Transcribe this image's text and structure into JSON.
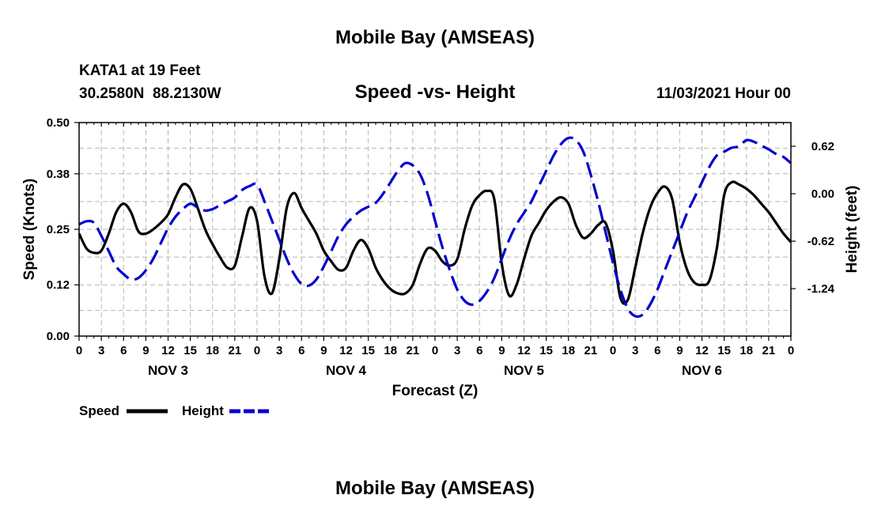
{
  "header": {
    "title": "Mobile Bay (AMSEAS)",
    "station": "KATA1 at 19 Feet",
    "coords": "30.2580N  88.2130W",
    "subtitle": "Speed -vs- Height",
    "datetime": "11/03/2021 Hour 00",
    "footer_title": "Mobile Bay (AMSEAS)"
  },
  "legend": {
    "speed_label": "Speed",
    "height_label": "Height"
  },
  "chart_data": {
    "type": "line",
    "title": "Speed -vs- Height",
    "xlabel": "Forecast (Z)",
    "ylabel_left": "Speed (Knots)",
    "ylabel_right": "Height (feet)",
    "x_unit": "forecast hour from 11/03/2021 00Z",
    "xlim": [
      0,
      96
    ],
    "ylim_left": [
      0,
      0.5
    ],
    "ylim_right": [
      -1.86,
      0.93
    ],
    "grid": true,
    "legend_position": "bottom-left",
    "x_tick_labels": [
      "0",
      "3",
      "6",
      "9",
      "12",
      "15",
      "18",
      "21",
      "0",
      "3",
      "6",
      "9",
      "12",
      "15",
      "18",
      "21",
      "0",
      "3",
      "6",
      "9",
      "12",
      "15",
      "18",
      "21",
      "0",
      "3",
      "6",
      "9",
      "12",
      "15",
      "18",
      "21",
      "0"
    ],
    "day_labels": [
      "NOV 3",
      "NOV 4",
      "NOV 5",
      "NOV 6"
    ],
    "y_left_ticks": [
      "0.00",
      "0.12",
      "0.25",
      "0.38",
      "0.50"
    ],
    "y_right_ticks": [
      "0.62",
      "0.00",
      "-0.62",
      "-1.24"
    ],
    "colors": {
      "speed": "#000000",
      "height": "#0000cc",
      "grid": "#b4b4b4"
    },
    "series": [
      {
        "name": "Speed",
        "axis": "left",
        "style": "solid",
        "x": [
          0,
          1,
          2,
          3,
          4,
          5,
          6,
          7,
          8,
          9,
          10,
          11,
          12,
          13,
          14,
          15,
          16,
          17,
          18,
          19,
          20,
          21,
          22,
          23,
          24,
          25,
          26,
          27,
          28,
          29,
          30,
          31,
          32,
          33,
          34,
          35,
          36,
          37,
          38,
          39,
          40,
          41,
          42,
          43,
          44,
          45,
          46,
          47,
          48,
          49,
          50,
          51,
          52,
          53,
          54,
          55,
          56,
          57,
          58,
          59,
          60,
          61,
          62,
          63,
          64,
          65,
          66,
          67,
          68,
          69,
          70,
          71,
          72,
          73,
          74,
          75,
          76,
          77,
          78,
          79,
          80,
          81,
          82,
          83,
          84,
          85,
          86,
          87,
          88,
          89,
          90,
          91,
          92,
          93,
          94,
          95,
          96
        ],
        "values": [
          0.24,
          0.205,
          0.195,
          0.2,
          0.24,
          0.29,
          0.31,
          0.29,
          0.245,
          0.24,
          0.25,
          0.265,
          0.285,
          0.325,
          0.355,
          0.345,
          0.3,
          0.25,
          0.215,
          0.185,
          0.16,
          0.165,
          0.235,
          0.3,
          0.27,
          0.14,
          0.1,
          0.18,
          0.3,
          0.335,
          0.3,
          0.27,
          0.24,
          0.2,
          0.175,
          0.155,
          0.16,
          0.2,
          0.225,
          0.205,
          0.16,
          0.13,
          0.11,
          0.1,
          0.1,
          0.12,
          0.17,
          0.205,
          0.2,
          0.175,
          0.165,
          0.18,
          0.25,
          0.305,
          0.33,
          0.34,
          0.32,
          0.17,
          0.095,
          0.12,
          0.18,
          0.235,
          0.265,
          0.295,
          0.315,
          0.325,
          0.31,
          0.26,
          0.23,
          0.24,
          0.26,
          0.265,
          0.2,
          0.09,
          0.085,
          0.16,
          0.24,
          0.3,
          0.335,
          0.35,
          0.32,
          0.22,
          0.155,
          0.125,
          0.12,
          0.13,
          0.205,
          0.33,
          0.36,
          0.355,
          0.345,
          0.33,
          0.31,
          0.29,
          0.265,
          0.24,
          0.22
        ]
      },
      {
        "name": "Height",
        "axis": "right",
        "style": "dashed",
        "x": [
          0,
          1,
          2,
          3,
          4,
          5,
          6,
          7,
          8,
          9,
          10,
          11,
          12,
          13,
          14,
          15,
          16,
          17,
          18,
          19,
          20,
          21,
          22,
          23,
          24,
          25,
          26,
          27,
          28,
          29,
          30,
          31,
          32,
          33,
          34,
          35,
          36,
          37,
          38,
          39,
          40,
          41,
          42,
          43,
          44,
          45,
          46,
          47,
          48,
          49,
          50,
          51,
          52,
          53,
          54,
          55,
          56,
          57,
          58,
          59,
          60,
          61,
          62,
          63,
          64,
          65,
          66,
          67,
          68,
          69,
          70,
          71,
          72,
          73,
          74,
          75,
          76,
          77,
          78,
          79,
          80,
          81,
          82,
          83,
          84,
          85,
          86,
          87,
          88,
          89,
          90,
          91,
          92,
          93,
          94,
          95,
          96
        ],
        "values": [
          -0.4,
          -0.36,
          -0.38,
          -0.55,
          -0.75,
          -0.95,
          -1.05,
          -1.12,
          -1.1,
          -1.0,
          -0.85,
          -0.65,
          -0.45,
          -0.3,
          -0.2,
          -0.13,
          -0.18,
          -0.22,
          -0.2,
          -0.15,
          -0.1,
          -0.05,
          0.05,
          0.1,
          0.12,
          -0.1,
          -0.35,
          -0.6,
          -0.85,
          -1.05,
          -1.18,
          -1.2,
          -1.12,
          -0.95,
          -0.75,
          -0.55,
          -0.4,
          -0.3,
          -0.22,
          -0.17,
          -0.12,
          0.0,
          0.15,
          0.3,
          0.4,
          0.37,
          0.25,
          0.0,
          -0.35,
          -0.7,
          -1.0,
          -1.25,
          -1.4,
          -1.45,
          -1.4,
          -1.28,
          -1.1,
          -0.85,
          -0.6,
          -0.4,
          -0.25,
          -0.1,
          0.1,
          0.3,
          0.5,
          0.65,
          0.73,
          0.7,
          0.55,
          0.25,
          -0.1,
          -0.5,
          -0.9,
          -1.25,
          -1.5,
          -1.6,
          -1.58,
          -1.45,
          -1.25,
          -1.0,
          -0.75,
          -0.5,
          -0.25,
          -0.05,
          0.15,
          0.35,
          0.5,
          0.55,
          0.6,
          0.62,
          0.7,
          0.68,
          0.63,
          0.58,
          0.52,
          0.48,
          0.4
        ]
      }
    ]
  }
}
